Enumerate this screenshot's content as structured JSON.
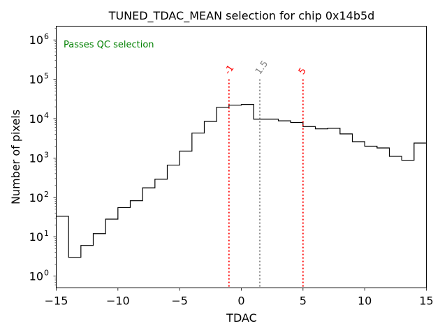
{
  "chart_data": {
    "type": "histogram",
    "title": "TUNED_TDAC_MEAN selection for chip 0x14b5d",
    "xlabel": "TDAC",
    "ylabel": "Number of pixels",
    "xlim": [
      -15,
      15
    ],
    "ylim_log10": [
      -0.3,
      6.35
    ],
    "yscale": "log",
    "x_ticks": [
      -15,
      -10,
      -5,
      0,
      5,
      10,
      15
    ],
    "x_tick_labels": [
      "−15",
      "−10",
      "−5",
      "0",
      "5",
      "10",
      "15"
    ],
    "y_ticks": [
      {
        "base": "10",
        "exp": "0",
        "log": 0
      },
      {
        "base": "10",
        "exp": "1",
        "log": 1
      },
      {
        "base": "10",
        "exp": "2",
        "log": 2
      },
      {
        "base": "10",
        "exp": "3",
        "log": 3
      },
      {
        "base": "10",
        "exp": "4",
        "log": 4
      },
      {
        "base": "10",
        "exp": "5",
        "log": 5
      },
      {
        "base": "10",
        "exp": "6",
        "log": 6
      }
    ],
    "bin_edges": [
      -15,
      -14,
      -13,
      -12,
      -11,
      -10,
      -9,
      -8,
      -7,
      -6,
      -5,
      -4,
      -3,
      -2,
      -1,
      0,
      1,
      2,
      3,
      4,
      5,
      6,
      7,
      8,
      9,
      10,
      11,
      12,
      13,
      14,
      15
    ],
    "counts": [
      33,
      3,
      6,
      12,
      28,
      55,
      82,
      175,
      290,
      660,
      1500,
      4300,
      8500,
      19500,
      22000,
      23000,
      9700,
      9700,
      8800,
      8000,
      6300,
      5500,
      5700,
      4100,
      2600,
      2000,
      1800,
      1100,
      880,
      2400
    ],
    "annotation": {
      "text": "Passes QC selection",
      "color": "#008000"
    },
    "vlines": [
      {
        "x": -1,
        "label": "-1",
        "color": "#ff0000",
        "style": "dotted"
      },
      {
        "x": 1.5,
        "label": "1.5",
        "color": "#808080",
        "style": "dotted"
      },
      {
        "x": 5,
        "label": "5",
        "color": "#ff0000",
        "style": "dotted"
      }
    ],
    "vline_top_value": 100000
  }
}
